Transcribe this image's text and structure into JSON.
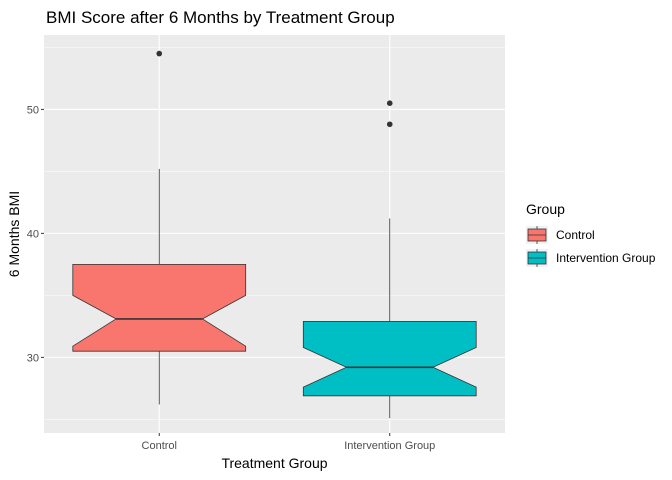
{
  "chart_data": {
    "type": "boxplot",
    "notched": true,
    "title": "BMI Score after 6 Months by Treatment Group",
    "xlabel": "Treatment Group",
    "ylabel": "6 Months BMI",
    "categories": [
      "Control",
      "Intervention Group"
    ],
    "ylim": [
      23.9,
      56.0
    ],
    "yticks": [
      30,
      40,
      50
    ],
    "grid": true,
    "legend": {
      "title": "Group",
      "position": "right",
      "entries": [
        {
          "label": "Control",
          "color": "#F8766D"
        },
        {
          "label": "Intervention Group",
          "color": "#00BFC4"
        }
      ]
    },
    "boxes": [
      {
        "category": "Control",
        "color": "#F8766D",
        "whisker_low": 26.2,
        "q1": 30.5,
        "notch_low": 30.9,
        "median": 33.1,
        "notch_high": 35.0,
        "q3": 37.5,
        "whisker_high": 45.2,
        "outliers": [
          54.5
        ]
      },
      {
        "category": "Intervention Group",
        "color": "#00BFC4",
        "whisker_low": 25.1,
        "q1": 26.9,
        "notch_low": 27.6,
        "median": 29.2,
        "notch_high": 30.8,
        "q3": 32.9,
        "whisker_high": 41.2,
        "outliers": [
          48.8,
          50.5
        ]
      }
    ]
  }
}
